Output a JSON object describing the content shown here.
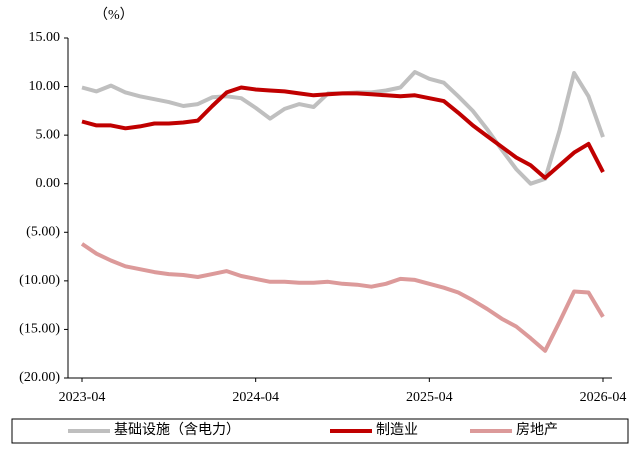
{
  "chart_data": {
    "type": "line",
    "unit_label": "（%）",
    "categories": [
      "2023-04",
      null,
      null,
      null,
      null,
      null,
      null,
      null,
      null,
      null,
      null,
      null,
      "2024-04",
      null,
      null,
      null,
      null,
      null,
      null,
      null,
      null,
      null,
      null,
      null,
      "2025-04",
      null,
      null,
      null,
      null,
      null,
      null,
      null,
      null,
      null,
      null,
      null,
      "2026-04"
    ],
    "series": [
      {
        "name": "基础设施（含电力）",
        "color": "#bfbfbf",
        "values": [
          9.9,
          9.5,
          10.1,
          9.4,
          9.0,
          8.7,
          8.4,
          8.0,
          8.2,
          8.9,
          9.0,
          8.8,
          7.8,
          6.7,
          7.7,
          8.2,
          7.9,
          9.3,
          9.3,
          9.4,
          9.4,
          9.6,
          9.9,
          11.5,
          10.8,
          10.4,
          9.0,
          7.5,
          5.6,
          3.5,
          1.5,
          0.0,
          0.5,
          5.5,
          11.4,
          9.0,
          4.8
        ]
      },
      {
        "name": "制造业",
        "color": "#c00000",
        "values": [
          6.4,
          6.0,
          6.0,
          5.7,
          5.9,
          6.2,
          6.2,
          6.3,
          6.5,
          8.0,
          9.4,
          9.9,
          9.7,
          9.6,
          9.5,
          9.3,
          9.1,
          9.2,
          9.3,
          9.3,
          9.2,
          9.1,
          9.0,
          9.1,
          8.8,
          8.5,
          7.3,
          6.0,
          4.9,
          3.8,
          2.7,
          1.9,
          0.6,
          1.9,
          3.2,
          4.1,
          1.2
        ]
      },
      {
        "name": "房地产",
        "color": "#dc9a9a",
        "values": [
          -6.2,
          -7.2,
          -7.9,
          -8.5,
          -8.8,
          -9.1,
          -9.3,
          -9.4,
          -9.6,
          -9.3,
          -9.0,
          -9.5,
          -9.8,
          -10.1,
          -10.1,
          -10.2,
          -10.2,
          -10.1,
          -10.3,
          -10.4,
          -10.6,
          -10.3,
          -9.8,
          -9.9,
          -10.3,
          -10.7,
          -11.2,
          -12.0,
          -12.9,
          -13.9,
          -14.7,
          -15.9,
          -17.2,
          -14.2,
          -11.1,
          -11.2,
          -13.7
        ]
      }
    ],
    "ylim": [
      -20,
      15
    ],
    "yticks": [
      {
        "value": 15,
        "label": "15.00"
      },
      {
        "value": 10,
        "label": "10.00"
      },
      {
        "value": 5,
        "label": "5.00"
      },
      {
        "value": 0,
        "label": "0.00"
      },
      {
        "value": -5,
        "label": "(5.00)"
      },
      {
        "value": -10,
        "label": "(10.00)"
      },
      {
        "value": -15,
        "label": "(15.00)"
      },
      {
        "value": -20,
        "label": "(20.00)"
      }
    ],
    "negative_tick_color": "#c00000",
    "legend": "bottom"
  }
}
